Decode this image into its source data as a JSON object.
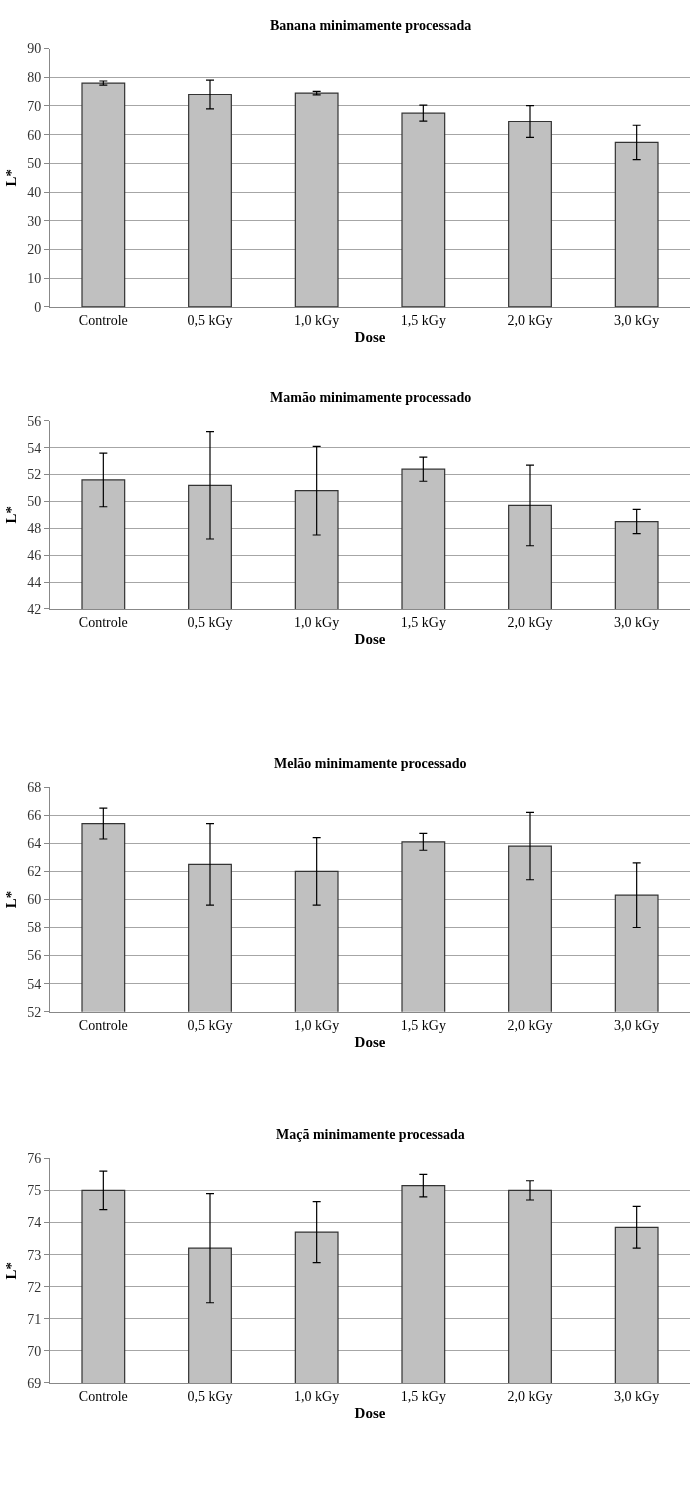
{
  "chart_data": [
    {
      "type": "bar",
      "title": "Banana minimamente processada",
      "xlabel": "Dose",
      "ylabel": "L*",
      "categories": [
        "Controle",
        "0,5 kGy",
        "1,0 kGy",
        "1,5 kGy",
        "2,0 kGy",
        "3,0 kGy"
      ],
      "values": [
        78,
        74,
        74.5,
        67.5,
        64.6,
        57.3
      ],
      "errors": [
        0.7,
        5,
        0.6,
        2.8,
        5.5,
        6
      ],
      "color": "#c0c0c0",
      "ylim": [
        0,
        90
      ],
      "yticks": [
        0,
        10,
        20,
        30,
        40,
        50,
        60,
        70,
        80,
        90
      ],
      "grid": "y"
    },
    {
      "type": "bar",
      "title": "Mamão minimamente processado",
      "xlabel": "Dose",
      "ylabel": "L*",
      "categories": [
        "Controle",
        "0,5 kGy",
        "1,0 kGy",
        "1,5 kGy",
        "2,0 kGy",
        "3,0 kGy"
      ],
      "values": [
        51.6,
        51.2,
        50.8,
        52.4,
        49.7,
        48.5
      ],
      "errors": [
        2,
        4,
        3.3,
        0.9,
        3,
        0.9
      ],
      "color": "#c0c0c0",
      "ylim": [
        42,
        56
      ],
      "yticks": [
        42,
        44,
        46,
        48,
        50,
        52,
        54,
        56
      ],
      "grid": "y"
    },
    {
      "type": "bar",
      "title": "Melão minimamente processado",
      "xlabel": "Dose",
      "ylabel": "L*",
      "categories": [
        "Controle",
        "0,5 kGy",
        "1,0 kGy",
        "1,5 kGy",
        "2,0 kGy",
        "3,0 kGy"
      ],
      "values": [
        65.4,
        62.5,
        62.0,
        64.1,
        63.8,
        60.3
      ],
      "errors": [
        1.1,
        2.9,
        2.4,
        0.6,
        2.4,
        2.3
      ],
      "color": "#c0c0c0",
      "ylim": [
        52,
        68
      ],
      "yticks": [
        52,
        54,
        56,
        58,
        60,
        62,
        64,
        66,
        68
      ],
      "grid": "y"
    },
    {
      "type": "bar",
      "title": "Maçã minimamente processada",
      "xlabel": "Dose",
      "ylabel": "L*",
      "categories": [
        "Controle",
        "0,5 kGy",
        "1,0 kGy",
        "1,5 kGy",
        "2,0 kGy",
        "3,0 kGy"
      ],
      "values": [
        75.0,
        73.2,
        73.7,
        75.15,
        75.0,
        73.85
      ],
      "errors": [
        0.6,
        1.7,
        0.95,
        0.35,
        0.3,
        0.65
      ],
      "color": "#c0c0c0",
      "ylim": [
        69,
        76
      ],
      "yticks": [
        69,
        70,
        71,
        72,
        73,
        74,
        75,
        76
      ],
      "grid": "y"
    }
  ]
}
